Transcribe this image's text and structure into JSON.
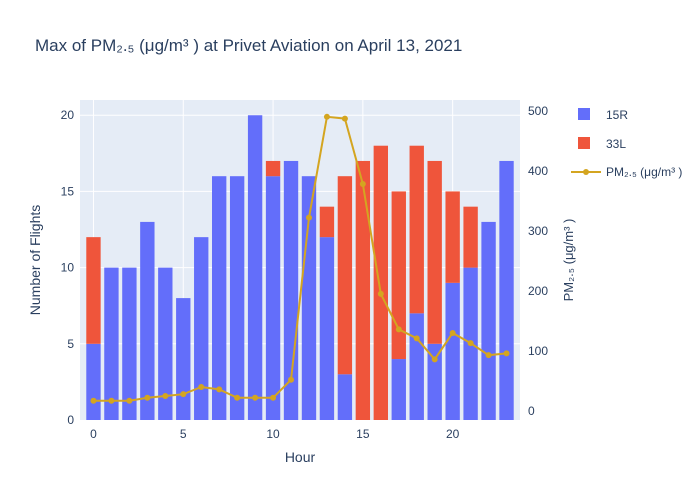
{
  "chart_data": {
    "type": "bar",
    "title": "Max of PM₂.₅ (μg/m³ ) at Privet Aviation on April 13, 2021",
    "xlabel": "Hour",
    "ylabel": "Number of Flights",
    "y2label": "PM₂.₅ (μg/m³ )",
    "xlim": [
      -0.75,
      23.75
    ],
    "ylim": [
      0,
      21
    ],
    "y2lim": [
      -15,
      518
    ],
    "x_ticks": [
      0,
      5,
      10,
      15,
      20
    ],
    "y_ticks": [
      0,
      5,
      10,
      15,
      20
    ],
    "y2_ticks": [
      0,
      100,
      200,
      300,
      400,
      500
    ],
    "grid": true,
    "legend_position": "top-right",
    "barmode": "stack",
    "colors": {
      "15R": "#636efa",
      "33L": "#ef553b",
      "pm25": "#d4a520",
      "plot_bg": "#e5ecf6"
    },
    "x": [
      0,
      1,
      2,
      3,
      4,
      5,
      6,
      7,
      8,
      9,
      10,
      11,
      12,
      13,
      14,
      15,
      16,
      17,
      18,
      19,
      20,
      21,
      22,
      23
    ],
    "series": [
      {
        "name": "15R",
        "type": "bar",
        "values": [
          5,
          10,
          10,
          13,
          10,
          8,
          12,
          16,
          16,
          20,
          16,
          17,
          16,
          12,
          3,
          0,
          0,
          4,
          7,
          5,
          9,
          10,
          13,
          17
        ]
      },
      {
        "name": "33L",
        "type": "bar",
        "values": [
          7,
          0,
          0,
          0,
          0,
          0,
          0,
          0,
          0,
          0,
          1,
          0,
          0,
          2,
          13,
          17,
          18,
          11,
          11,
          12,
          6,
          4,
          0,
          0
        ]
      },
      {
        "name": "PM₂.₅ (μg/m³ )",
        "type": "line",
        "axis": "y2",
        "values": [
          17,
          17,
          17,
          22,
          25,
          28,
          40,
          36,
          22,
          22,
          22,
          52,
          322,
          490,
          487,
          378,
          195,
          136,
          121,
          86,
          130,
          113,
          93,
          96
        ]
      }
    ]
  }
}
